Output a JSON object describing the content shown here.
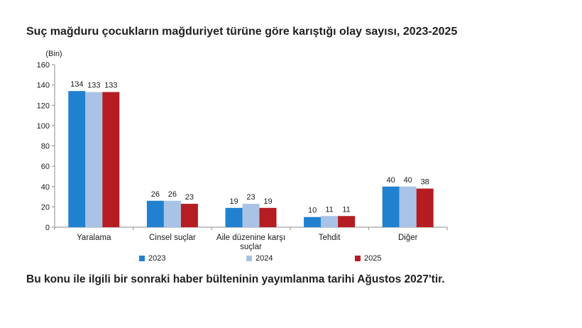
{
  "title": "Suç mağduru çocukların mağduriyet türüne göre karıştığı olay sayısı, 2023-2025",
  "footer": "Bu konu ile ilgili bir sonraki haber bülteninin yayımlanma tarihi Ağustos 2027'tir.",
  "colors": {
    "2023": "#2180cf",
    "2024": "#a8c3e6",
    "2025": "#b51d22"
  },
  "chart_data": {
    "type": "bar",
    "unit_label": "(Bin)",
    "categories": [
      [
        "Yaralama"
      ],
      [
        "Cinsel suçlar"
      ],
      [
        "Aile düzenine karşı",
        "suçlar"
      ],
      [
        "Tehdit"
      ],
      [
        "Diğer"
      ]
    ],
    "series": [
      {
        "name": "2023",
        "values": [
          134,
          26,
          19,
          10,
          40
        ]
      },
      {
        "name": "2024",
        "values": [
          133,
          26,
          23,
          11,
          40
        ]
      },
      {
        "name": "2025",
        "values": [
          133,
          23,
          19,
          11,
          38
        ]
      }
    ],
    "yticks": [
      "0",
      "20",
      "40",
      "60",
      "80",
      "100",
      "120",
      "140",
      "160"
    ],
    "ylim": [
      0,
      160
    ],
    "grid": false,
    "legend_position": "bottom"
  }
}
